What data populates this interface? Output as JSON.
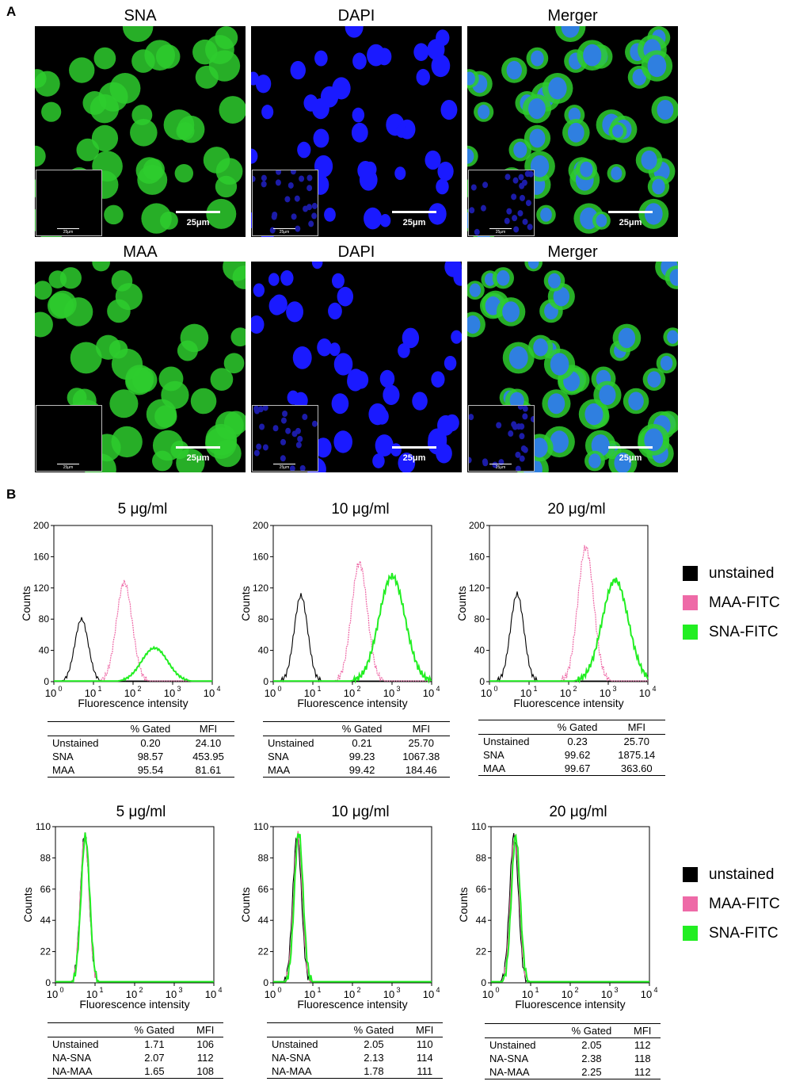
{
  "panel_a_label": "A",
  "panel_b_label": "B",
  "micrographs": {
    "rows": [
      {
        "titles": [
          "SNA",
          "DAPI",
          "Merger"
        ]
      },
      {
        "titles": [
          "MAA",
          "DAPI",
          "Merger"
        ]
      }
    ],
    "scale_label": "25μm",
    "inset_scale_label": "25μm"
  },
  "axis": {
    "xlabel": "Fluorescence intensity",
    "ylabel": "Counts",
    "xticks": [
      "10",
      "10",
      "10",
      "10",
      "10"
    ],
    "xtick_exps": [
      "0",
      "1",
      "2",
      "3",
      "4"
    ]
  },
  "legend_top": {
    "items": [
      "unstained",
      "MAA-FITC",
      "SNA-FITC"
    ]
  },
  "legend_bottom": {
    "items": [
      "unstained",
      "MAA-FITC",
      "SNA-FITC"
    ]
  },
  "colors": {
    "unstained": "#000000",
    "maa": "#ee6aa7",
    "sna": "#22ee22",
    "dapi": "#1a1aff",
    "lectin": "#2ecc2e"
  },
  "tables_top": [
    {
      "headers": [
        "",
        "% Gated",
        "MFI"
      ],
      "rows": [
        [
          "Unstained",
          "0.20",
          "24.10"
        ],
        [
          "SNA",
          "98.57",
          "453.95"
        ],
        [
          "MAA",
          "95.54",
          "81.61"
        ]
      ]
    },
    {
      "headers": [
        "",
        "% Gated",
        "MFI"
      ],
      "rows": [
        [
          "Unstained",
          "0.21",
          "25.70"
        ],
        [
          "SNA",
          "99.23",
          "1067.38"
        ],
        [
          "MAA",
          "99.42",
          "184.46"
        ]
      ]
    },
    {
      "headers": [
        "",
        "% Gated",
        "MFI"
      ],
      "rows": [
        [
          "Unstained",
          "0.23",
          "25.70"
        ],
        [
          "SNA",
          "99.62",
          "1875.14"
        ],
        [
          "MAA",
          "99.67",
          "363.60"
        ]
      ]
    }
  ],
  "tables_bottom": [
    {
      "headers": [
        "",
        "% Gated",
        "MFI"
      ],
      "rows": [
        [
          "Unstained",
          "1.71",
          "106"
        ],
        [
          "NA-SNA",
          "2.07",
          "112"
        ],
        [
          "NA-MAA",
          "1.65",
          "108"
        ]
      ]
    },
    {
      "headers": [
        "",
        "% Gated",
        "MFI"
      ],
      "rows": [
        [
          "Unstained",
          "2.05",
          "110"
        ],
        [
          "NA-SNA",
          "2.13",
          "114"
        ],
        [
          "NA-MAA",
          "1.78",
          "111"
        ]
      ]
    },
    {
      "headers": [
        "",
        "% Gated",
        "MFI"
      ],
      "rows": [
        [
          "Unstained",
          "2.05",
          "112"
        ],
        [
          "NA-SNA",
          "2.38",
          "118"
        ],
        [
          "NA-MAA",
          "2.25",
          "112"
        ]
      ]
    }
  ],
  "chart_data": [
    {
      "type": "line",
      "title": "5 μg/ml",
      "xlabel": "Fluorescence intensity",
      "ylabel": "Counts",
      "xscale": "log",
      "xlim": [
        1,
        10000
      ],
      "ylim": [
        0,
        200
      ],
      "yticks": [
        0,
        40,
        80,
        120,
        160,
        200
      ],
      "series": [
        {
          "name": "unstained",
          "peak_x": 5,
          "peak_y": 80
        },
        {
          "name": "MAA-FITC",
          "peak_x": 60,
          "peak_y": 127
        },
        {
          "name": "SNA-FITC",
          "peak_x": 350,
          "peak_y": 43
        }
      ]
    },
    {
      "type": "line",
      "title": "10 μg/ml",
      "xlabel": "Fluorescence intensity",
      "ylabel": "Counts",
      "xscale": "log",
      "xlim": [
        1,
        10000
      ],
      "ylim": [
        0,
        200
      ],
      "yticks": [
        0,
        40,
        80,
        120,
        160,
        200
      ],
      "series": [
        {
          "name": "unstained",
          "peak_x": 5,
          "peak_y": 110
        },
        {
          "name": "MAA-FITC",
          "peak_x": 150,
          "peak_y": 152
        },
        {
          "name": "SNA-FITC",
          "peak_x": 1000,
          "peak_y": 135
        }
      ]
    },
    {
      "type": "line",
      "title": "20 μg/ml",
      "xlabel": "Fluorescence intensity",
      "ylabel": "Counts",
      "xscale": "log",
      "xlim": [
        1,
        10000
      ],
      "ylim": [
        0,
        200
      ],
      "yticks": [
        0,
        40,
        80,
        120,
        160,
        200
      ],
      "series": [
        {
          "name": "unstained",
          "peak_x": 5,
          "peak_y": 112
        },
        {
          "name": "MAA-FITC",
          "peak_x": 270,
          "peak_y": 172
        },
        {
          "name": "SNA-FITC",
          "peak_x": 1500,
          "peak_y": 130
        }
      ]
    },
    {
      "type": "line",
      "title": "5 μg/ml",
      "xlabel": "Fluorescence intensity",
      "ylabel": "Counts",
      "xscale": "log",
      "xlim": [
        1,
        10000
      ],
      "ylim": [
        0,
        110
      ],
      "yticks": [
        0,
        22,
        44,
        66,
        88,
        110
      ],
      "series": [
        {
          "name": "unstained",
          "peak_x": 5.5,
          "peak_y": 105
        },
        {
          "name": "MAA-FITC",
          "peak_x": 5.5,
          "peak_y": 104
        },
        {
          "name": "SNA-FITC",
          "peak_x": 5.7,
          "peak_y": 103
        }
      ]
    },
    {
      "type": "line",
      "title": "10 μg/ml",
      "xlabel": "Fluorescence intensity",
      "ylabel": "Counts",
      "xscale": "log",
      "xlim": [
        1,
        10000
      ],
      "ylim": [
        0,
        110
      ],
      "yticks": [
        0,
        22,
        44,
        66,
        88,
        110
      ],
      "series": [
        {
          "name": "unstained",
          "peak_x": 4,
          "peak_y": 103
        },
        {
          "name": "MAA-FITC",
          "peak_x": 4.2,
          "peak_y": 104
        },
        {
          "name": "SNA-FITC",
          "peak_x": 4.4,
          "peak_y": 106
        }
      ]
    },
    {
      "type": "line",
      "title": "20 μg/ml",
      "xlabel": "Fluorescence intensity",
      "ylabel": "Counts",
      "xscale": "log",
      "xlim": [
        1,
        10000
      ],
      "ylim": [
        0,
        110
      ],
      "yticks": [
        0,
        22,
        44,
        66,
        88,
        110
      ],
      "series": [
        {
          "name": "unstained",
          "peak_x": 3.8,
          "peak_y": 104
        },
        {
          "name": "MAA-FITC",
          "peak_x": 4,
          "peak_y": 104
        },
        {
          "name": "SNA-FITC",
          "peak_x": 4.2,
          "peak_y": 103
        }
      ]
    }
  ]
}
